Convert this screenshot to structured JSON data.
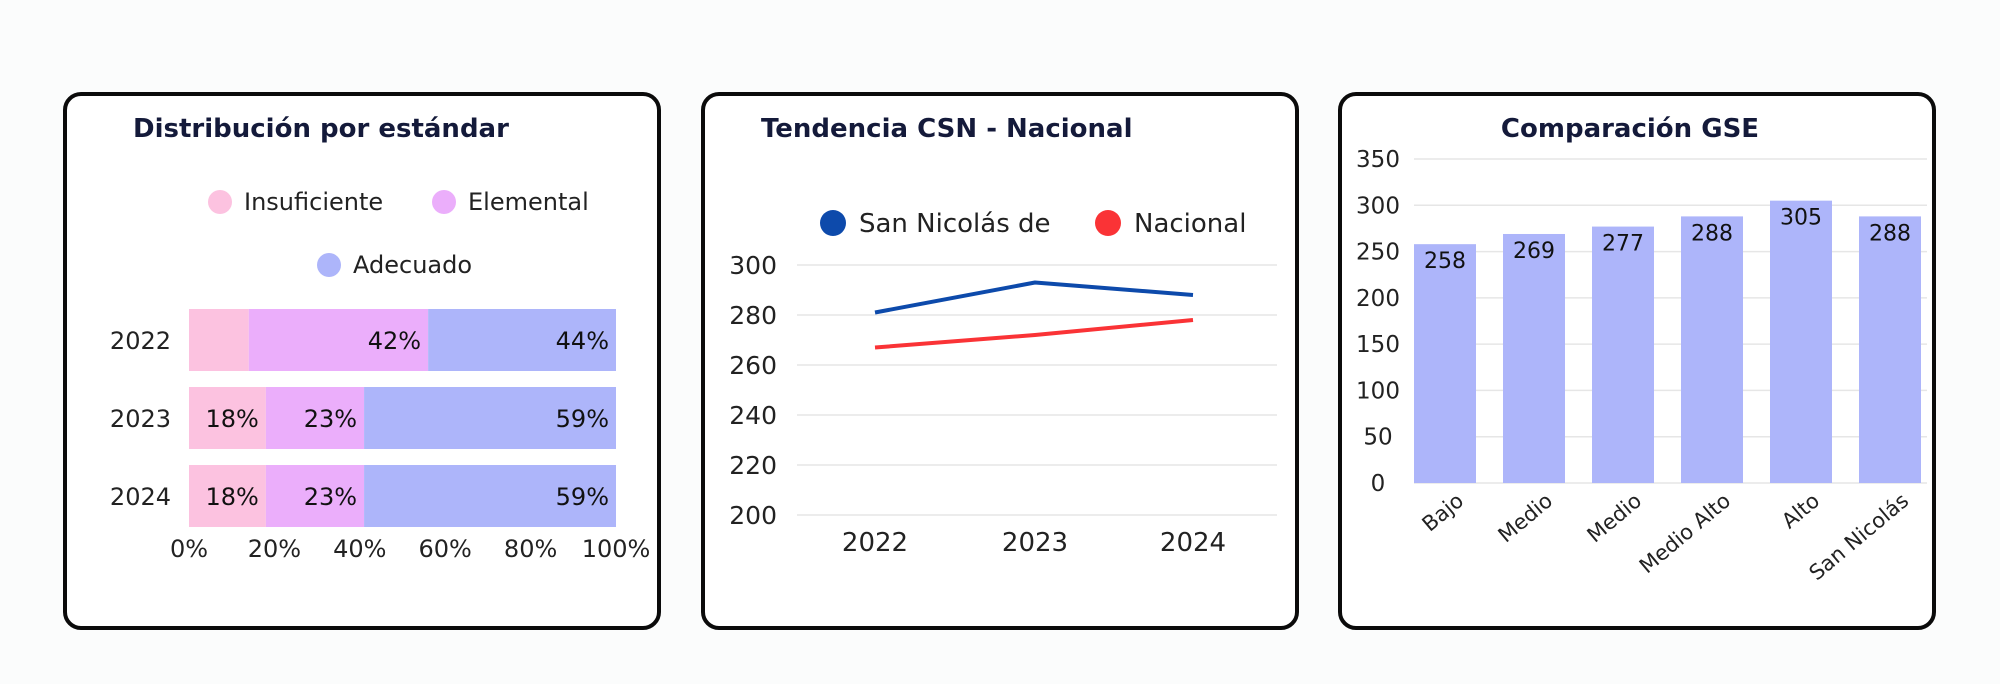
{
  "colors": {
    "insuficiente": "#fcc2e0",
    "elemental": "#ebaefb",
    "adecuado": "#adb5fa",
    "san_nicolas": "#0d4aab",
    "nacional": "#fa3336",
    "gse_bar": "#adb5fa"
  },
  "chart_data": [
    {
      "type": "bar",
      "orientation": "horizontal",
      "stacked": true,
      "title": "Distribución por estándar",
      "categories": [
        "2022",
        "2023",
        "2024"
      ],
      "series": [
        {
          "name": "Insuficiente",
          "values": [
            14,
            18,
            18
          ],
          "labels": [
            "",
            "18%",
            "18%"
          ]
        },
        {
          "name": "Elemental",
          "values": [
            42,
            23,
            23
          ],
          "labels": [
            "42%",
            "23%",
            "23%"
          ]
        },
        {
          "name": "Adecuado",
          "values": [
            44,
            59,
            59
          ],
          "labels": [
            "44%",
            "59%",
            "59%"
          ]
        }
      ],
      "xlim": [
        0,
        100
      ],
      "xticks": [
        "0%",
        "20%",
        "40%",
        "60%",
        "80%",
        "100%"
      ],
      "legend": "top",
      "grid": false
    },
    {
      "type": "line",
      "title": "Tendencia CSN - Nacional",
      "categories": [
        "2022",
        "2023",
        "2024"
      ],
      "series": [
        {
          "name": "San Nicolás de",
          "values": [
            281,
            293,
            288
          ]
        },
        {
          "name": "Nacional",
          "values": [
            267,
            272,
            278
          ]
        }
      ],
      "ylim": [
        200,
        300
      ],
      "yticks": [
        "200",
        "220",
        "240",
        "260",
        "280",
        "300"
      ],
      "legend": "top",
      "grid": true
    },
    {
      "type": "bar",
      "title": "Comparación GSE",
      "categories": [
        "Bajo",
        "Medio",
        "Medio",
        "Medio Alto",
        "Alto",
        "San Nicolás"
      ],
      "values": [
        258,
        269,
        277,
        288,
        305,
        288
      ],
      "labels": [
        "258",
        "269",
        "277",
        "288",
        "305",
        "288"
      ],
      "ylim": [
        0,
        350
      ],
      "yticks": [
        "0",
        "50",
        "100",
        "150",
        "200",
        "250",
        "300",
        "350"
      ],
      "grid": true
    }
  ]
}
